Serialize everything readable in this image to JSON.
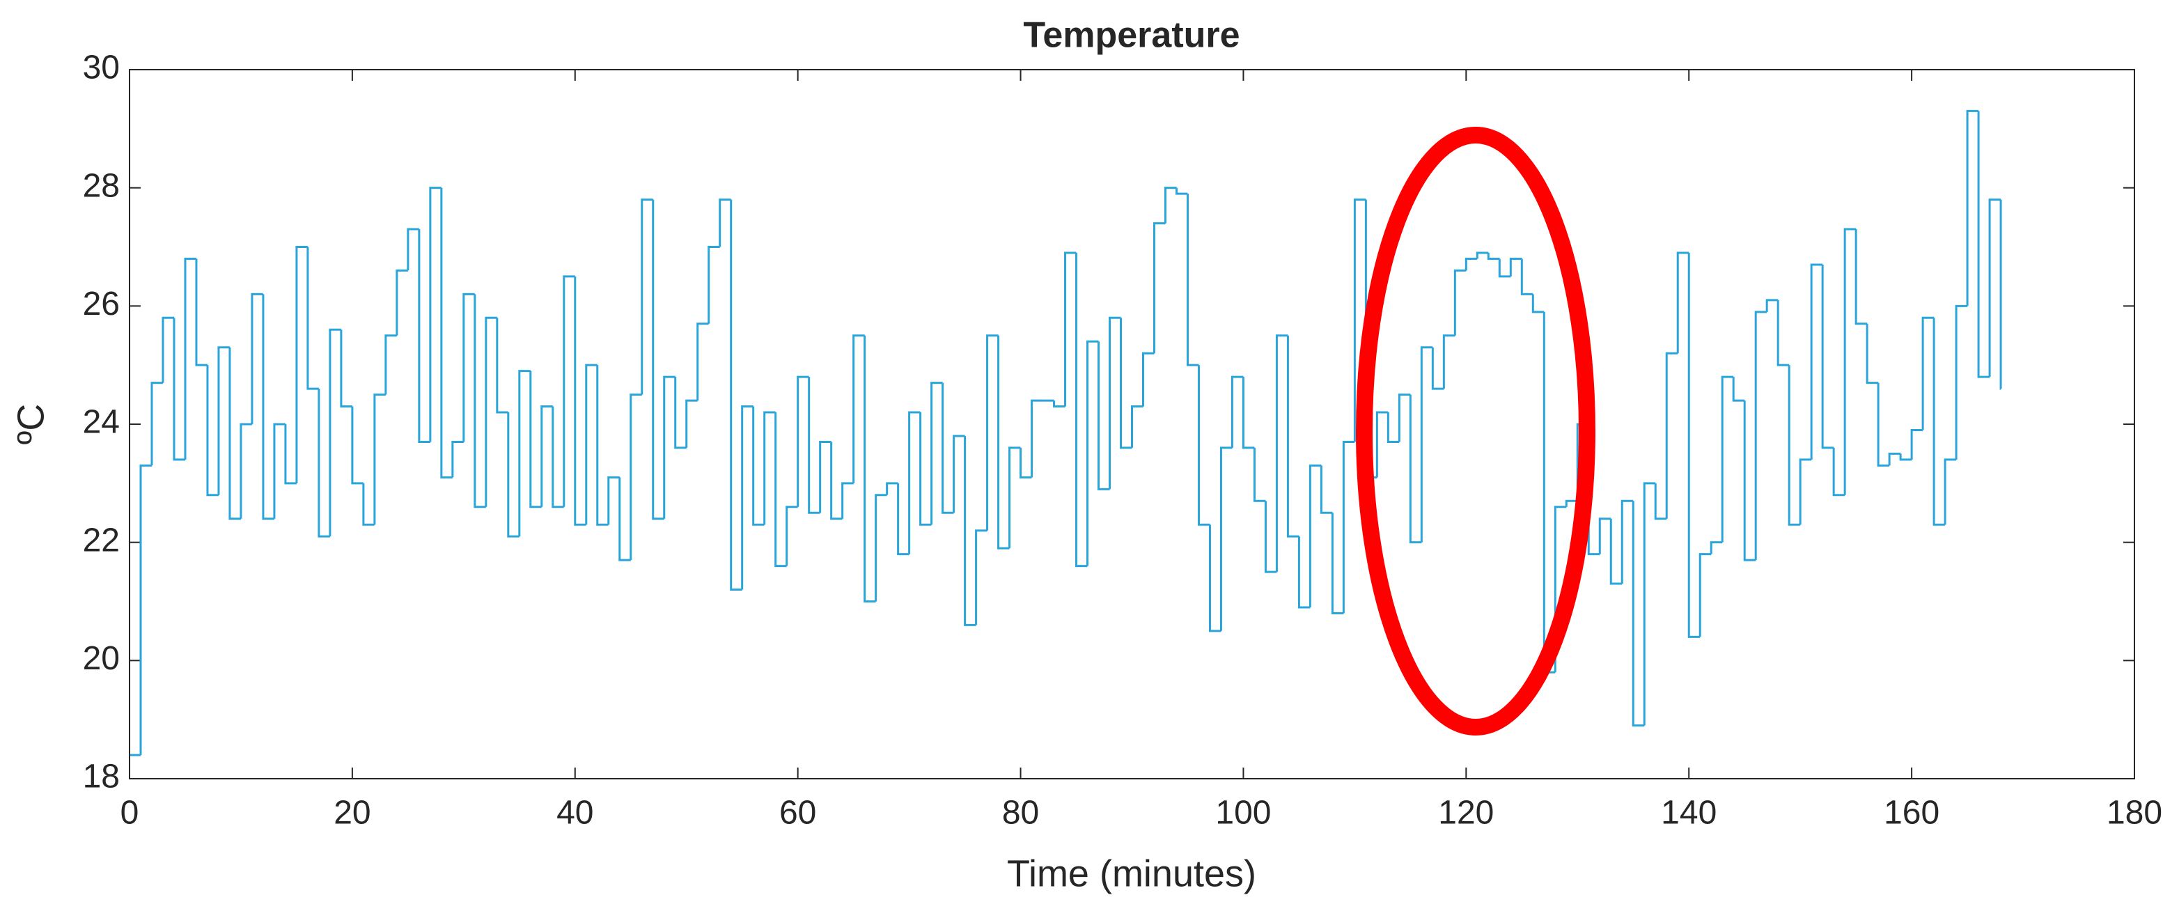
{
  "chart_data": {
    "type": "line",
    "step": "stairs",
    "color": "#2aa5dc",
    "title": "Temperature",
    "xlabel": "Time (minutes)",
    "ylabel": "ºC",
    "xlim": [
      0,
      180
    ],
    "xticks": [
      0,
      20,
      40,
      60,
      80,
      100,
      120,
      140,
      160,
      180
    ],
    "ylim": [
      18,
      30
    ],
    "yticks": [
      18,
      20,
      22,
      24,
      26,
      28,
      30
    ],
    "grid": false,
    "box": true,
    "x": [
      0,
      1,
      2,
      3,
      4,
      5,
      6,
      7,
      8,
      9,
      10,
      11,
      12,
      13,
      14,
      15,
      16,
      17,
      18,
      19,
      20,
      21,
      22,
      23,
      24,
      25,
      26,
      27,
      28,
      29,
      30,
      31,
      32,
      33,
      34,
      35,
      36,
      37,
      38,
      39,
      40,
      41,
      42,
      43,
      44,
      45,
      46,
      47,
      48,
      49,
      50,
      51,
      52,
      53,
      54,
      55,
      56,
      57,
      58,
      59,
      60,
      61,
      62,
      63,
      64,
      65,
      66,
      67,
      68,
      69,
      70,
      71,
      72,
      73,
      74,
      75,
      76,
      77,
      78,
      79,
      80,
      81,
      82,
      83,
      84,
      85,
      86,
      87,
      88,
      89,
      90,
      91,
      92,
      93,
      94,
      95,
      96,
      97,
      98,
      99,
      100,
      101,
      102,
      103,
      104,
      105,
      106,
      107,
      108,
      109,
      110,
      111,
      112,
      113,
      114,
      115,
      116,
      117,
      118,
      119,
      120,
      121,
      122,
      123,
      124,
      125,
      126,
      127,
      128,
      129,
      130,
      131,
      132,
      133,
      134,
      135,
      136,
      137,
      138,
      139,
      140,
      141,
      142,
      143,
      144,
      145,
      146,
      147,
      148,
      149,
      150,
      151,
      152,
      153,
      154,
      155,
      156,
      157,
      158,
      159,
      160,
      161,
      162,
      163,
      164,
      165,
      166,
      167,
      168
    ],
    "values": [
      18.4,
      23.3,
      24.7,
      25.8,
      23.4,
      26.8,
      25,
      22.8,
      25.3,
      22.4,
      24,
      26.2,
      22.4,
      24,
      23,
      27,
      24.6,
      22.1,
      25.6,
      24.3,
      23,
      22.3,
      24.5,
      25.5,
      26.6,
      27.3,
      23.7,
      28,
      23.1,
      23.7,
      26.2,
      22.6,
      25.8,
      24.2,
      22.1,
      24.9,
      22.6,
      24.3,
      22.6,
      26.5,
      22.3,
      25,
      22.3,
      23.1,
      21.7,
      24.5,
      27.8,
      22.4,
      24.8,
      23.6,
      24.4,
      25.7,
      27,
      27.8,
      21.2,
      24.3,
      22.3,
      24.2,
      21.6,
      22.6,
      24.8,
      22.5,
      23.7,
      22.4,
      23,
      25.5,
      21,
      22.8,
      23,
      21.8,
      24.2,
      22.3,
      24.7,
      22.5,
      23.8,
      20.6,
      22.2,
      25.5,
      21.9,
      23.6,
      23.1,
      24.4,
      24.4,
      24.3,
      26.9,
      21.6,
      25.4,
      22.9,
      25.8,
      23.6,
      24.3,
      25.2,
      27.4,
      28,
      27.9,
      25,
      22.3,
      20.5,
      23.6,
      24.8,
      23.6,
      22.7,
      21.5,
      25.5,
      22.1,
      20.9,
      23.3,
      22.5,
      20.8,
      23.7,
      27.8,
      23.1,
      24.2,
      23.7,
      24.5,
      22,
      25.3,
      24.6,
      25.5,
      26.6,
      26.8,
      26.9,
      26.8,
      26.5,
      26.8,
      26.2,
      25.9,
      19.8,
      22.6,
      22.7,
      24,
      21.8,
      22.4,
      21.3,
      22.7,
      18.9,
      23,
      22.4,
      25.2,
      26.9,
      20.4,
      21.8,
      22,
      24.8,
      24.4,
      21.7,
      25.9,
      26.1,
      25,
      22.3,
      23.4,
      26.7,
      23.6,
      22.8,
      27.3,
      25.7,
      24.7,
      23.3,
      23.5,
      23.4,
      23.9,
      25.8,
      22.3,
      23.4,
      26,
      29.3,
      24.8,
      27.8,
      24.6
    ]
  }
}
